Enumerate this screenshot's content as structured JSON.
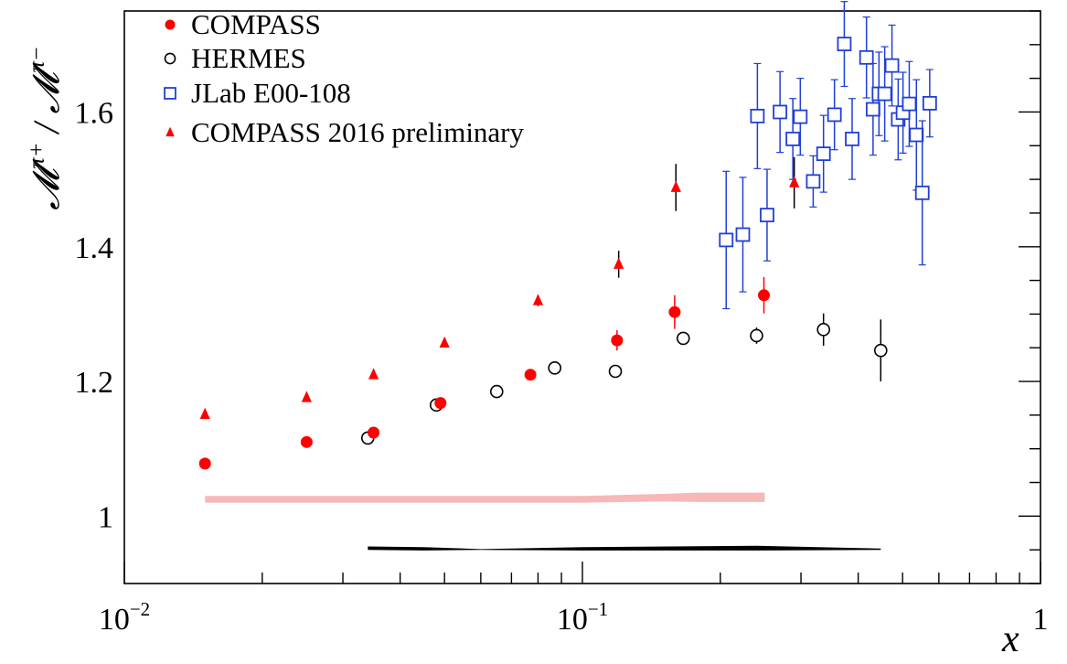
{
  "chart_data": {
    "type": "scatter",
    "xscale": "log",
    "xlim": [
      0.01,
      1
    ],
    "ylim": [
      0.9,
      1.75
    ],
    "xlabel": "x",
    "ylabel": "M^{π+} / M^{π−}",
    "legend_position": "top-left",
    "x_tick_labels": [
      {
        "base": "10",
        "exp": "−2",
        "value": 0.01
      },
      {
        "base": "10",
        "exp": "−1",
        "value": 0.1
      },
      {
        "base": "1",
        "exp": "",
        "value": 1
      }
    ],
    "y_tick_labels": [
      {
        "text": "1",
        "value": 1.0
      },
      {
        "text": "1.2",
        "value": 1.2
      },
      {
        "text": "1.4",
        "value": 1.4
      },
      {
        "text": "1.6",
        "value": 1.6
      }
    ],
    "series": [
      {
        "name": "COMPASS",
        "marker": "filled-circle",
        "color": "#ff0000",
        "points": [
          {
            "x": 0.015,
            "y": 1.078,
            "err": 0.004
          },
          {
            "x": 0.025,
            "y": 1.11,
            "err": 0.004
          },
          {
            "x": 0.035,
            "y": 1.124,
            "err": 0.005
          },
          {
            "x": 0.049,
            "y": 1.168,
            "err": 0.006
          },
          {
            "x": 0.077,
            "y": 1.21,
            "err": 0.007
          },
          {
            "x": 0.119,
            "y": 1.261,
            "err": 0.015
          },
          {
            "x": 0.159,
            "y": 1.303,
            "err": 0.025
          },
          {
            "x": 0.249,
            "y": 1.328,
            "err": 0.027
          }
        ]
      },
      {
        "name": "HERMES",
        "marker": "open-circle",
        "color": "#000000",
        "points": [
          {
            "x": 0.034,
            "y": 1.116,
            "err": 0.005
          },
          {
            "x": 0.048,
            "y": 1.165,
            "err": 0.005
          },
          {
            "x": 0.065,
            "y": 1.185,
            "err": 0.006
          },
          {
            "x": 0.087,
            "y": 1.22,
            "err": 0.007
          },
          {
            "x": 0.118,
            "y": 1.215,
            "err": 0.008
          },
          {
            "x": 0.166,
            "y": 1.264,
            "err": 0.008
          },
          {
            "x": 0.24,
            "y": 1.268,
            "err": 0.012
          },
          {
            "x": 0.336,
            "y": 1.277,
            "err": 0.024
          },
          {
            "x": 0.448,
            "y": 1.246,
            "err": 0.046
          }
        ]
      },
      {
        "name": "JLab E00-108",
        "marker": "open-square",
        "color": "#1f3fd6",
        "points": [
          {
            "x": 0.206,
            "y": 1.41,
            "err": 0.102
          },
          {
            "x": 0.224,
            "y": 1.418,
            "err": 0.085
          },
          {
            "x": 0.241,
            "y": 1.594,
            "err": 0.078
          },
          {
            "x": 0.253,
            "y": 1.447,
            "err": 0.068
          },
          {
            "x": 0.27,
            "y": 1.6,
            "err": 0.06
          },
          {
            "x": 0.288,
            "y": 1.56,
            "err": 0.06
          },
          {
            "x": 0.299,
            "y": 1.593,
            "err": 0.057
          },
          {
            "x": 0.319,
            "y": 1.497,
            "err": 0.038
          },
          {
            "x": 0.336,
            "y": 1.538,
            "err": 0.057
          },
          {
            "x": 0.355,
            "y": 1.596,
            "err": 0.052
          },
          {
            "x": 0.373,
            "y": 1.701,
            "err": 0.063
          },
          {
            "x": 0.388,
            "y": 1.56,
            "err": 0.06
          },
          {
            "x": 0.417,
            "y": 1.681,
            "err": 0.06
          },
          {
            "x": 0.431,
            "y": 1.604,
            "err": 0.068
          },
          {
            "x": 0.444,
            "y": 1.627,
            "err": 0.062
          },
          {
            "x": 0.457,
            "y": 1.627,
            "err": 0.07
          },
          {
            "x": 0.474,
            "y": 1.669,
            "err": 0.06
          },
          {
            "x": 0.489,
            "y": 1.589,
            "err": 0.06
          },
          {
            "x": 0.501,
            "y": 1.599,
            "err": 0.06
          },
          {
            "x": 0.517,
            "y": 1.612,
            "err": 0.063
          },
          {
            "x": 0.536,
            "y": 1.566,
            "err": 0.082
          },
          {
            "x": 0.552,
            "y": 1.48,
            "err": 0.107
          },
          {
            "x": 0.573,
            "y": 1.613,
            "err": 0.05
          }
        ]
      },
      {
        "name": "COMPASS 2016 preliminary",
        "marker": "filled-triangle",
        "color": "#ff0000",
        "points": [
          {
            "x": 0.015,
            "y": 1.151,
            "err": 0.004
          },
          {
            "x": 0.025,
            "y": 1.176,
            "err": 0.004
          },
          {
            "x": 0.035,
            "y": 1.21,
            "err": 0.005
          },
          {
            "x": 0.05,
            "y": 1.257,
            "err": 0.006
          },
          {
            "x": 0.08,
            "y": 1.32,
            "err": 0.008
          },
          {
            "x": 0.12,
            "y": 1.374,
            "err": 0.02
          },
          {
            "x": 0.16,
            "y": 1.488,
            "err": 0.035
          },
          {
            "x": 0.29,
            "y": 1.495,
            "err": 0.038
          }
        ]
      }
    ],
    "systematic_bands": [
      {
        "color": "#f7b8b8",
        "points": [
          {
            "x": 0.015,
            "low": 1.02,
            "high": 1.03
          },
          {
            "x": 0.1,
            "low": 1.02,
            "high": 1.03
          },
          {
            "x": 0.15,
            "low": 1.022,
            "high": 1.033
          },
          {
            "x": 0.18,
            "low": 1.021,
            "high": 1.035
          },
          {
            "x": 0.25,
            "low": 1.021,
            "high": 1.035
          }
        ]
      },
      {
        "color": "#000000",
        "points": [
          {
            "x": 0.034,
            "low": 0.95,
            "high": 0.955
          },
          {
            "x": 0.045,
            "low": 0.949,
            "high": 0.954
          },
          {
            "x": 0.06,
            "low": 0.95,
            "high": 0.951
          },
          {
            "x": 0.1,
            "low": 0.949,
            "high": 0.954
          },
          {
            "x": 0.24,
            "low": 0.949,
            "high": 0.956
          },
          {
            "x": 0.448,
            "low": 0.95,
            "high": 0.952
          }
        ]
      }
    ]
  }
}
